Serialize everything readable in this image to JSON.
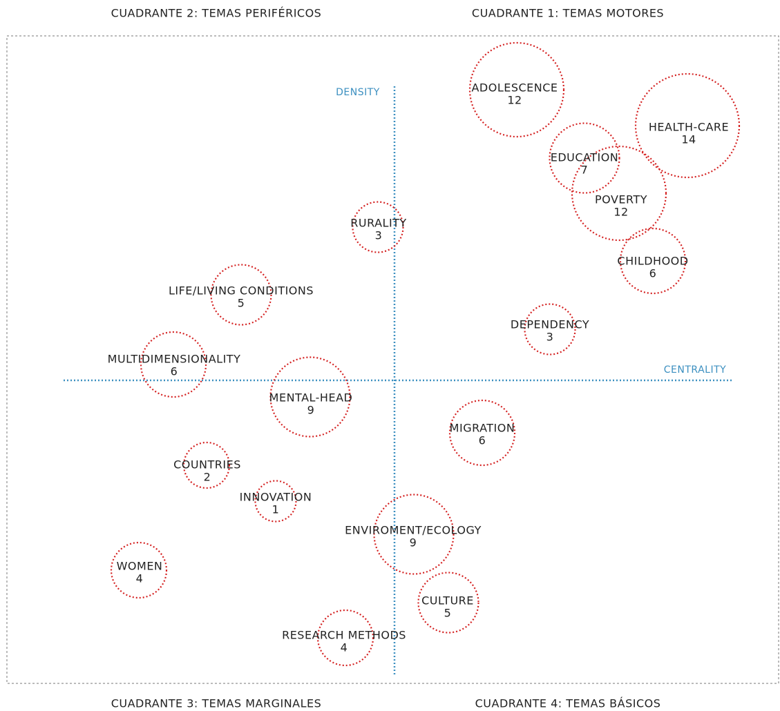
{
  "quadrants": [
    "CUADRANTE 2: TEMAS PERIFÉRICOS",
    "CUADRANTE 1: TEMAS MOTORES",
    "CUADRANTE 3: TEMAS MARGINALES",
    "CUADRANTE 4: TEMAS BÁSICOS"
  ],
  "axes": {
    "y": "DENSITY",
    "x": "CENTRALITY"
  },
  "nodes": [
    {
      "label": "ADOLESCENCE",
      "value": 12
    },
    {
      "label": "HEALTH-CARE",
      "value": 14
    },
    {
      "label": "EDUCATION",
      "value": 7
    },
    {
      "label": "POVERTY",
      "value": 12
    },
    {
      "label": "CHILDHOOD",
      "value": 6
    },
    {
      "label": "RURALITY",
      "value": 3
    },
    {
      "label": "LIFE/LIVING CONDITIONS",
      "value": 5
    },
    {
      "label": "DEPENDENCY",
      "value": 3
    },
    {
      "label": "MULTIDIMENSIONALITY",
      "value": 6
    },
    {
      "label": "MENTAL-HEAD",
      "value": 9
    },
    {
      "label": "MIGRATION",
      "value": 6
    },
    {
      "label": "COUNTRIES",
      "value": 2
    },
    {
      "label": "INNOVATION",
      "value": 1
    },
    {
      "label": "ENVIROMENT/ECOLOGY",
      "value": 9
    },
    {
      "label": "WOMEN",
      "value": 4
    },
    {
      "label": "CULTURE",
      "value": 5
    },
    {
      "label": "RESEARCH METHODS",
      "value": 4
    }
  ]
}
